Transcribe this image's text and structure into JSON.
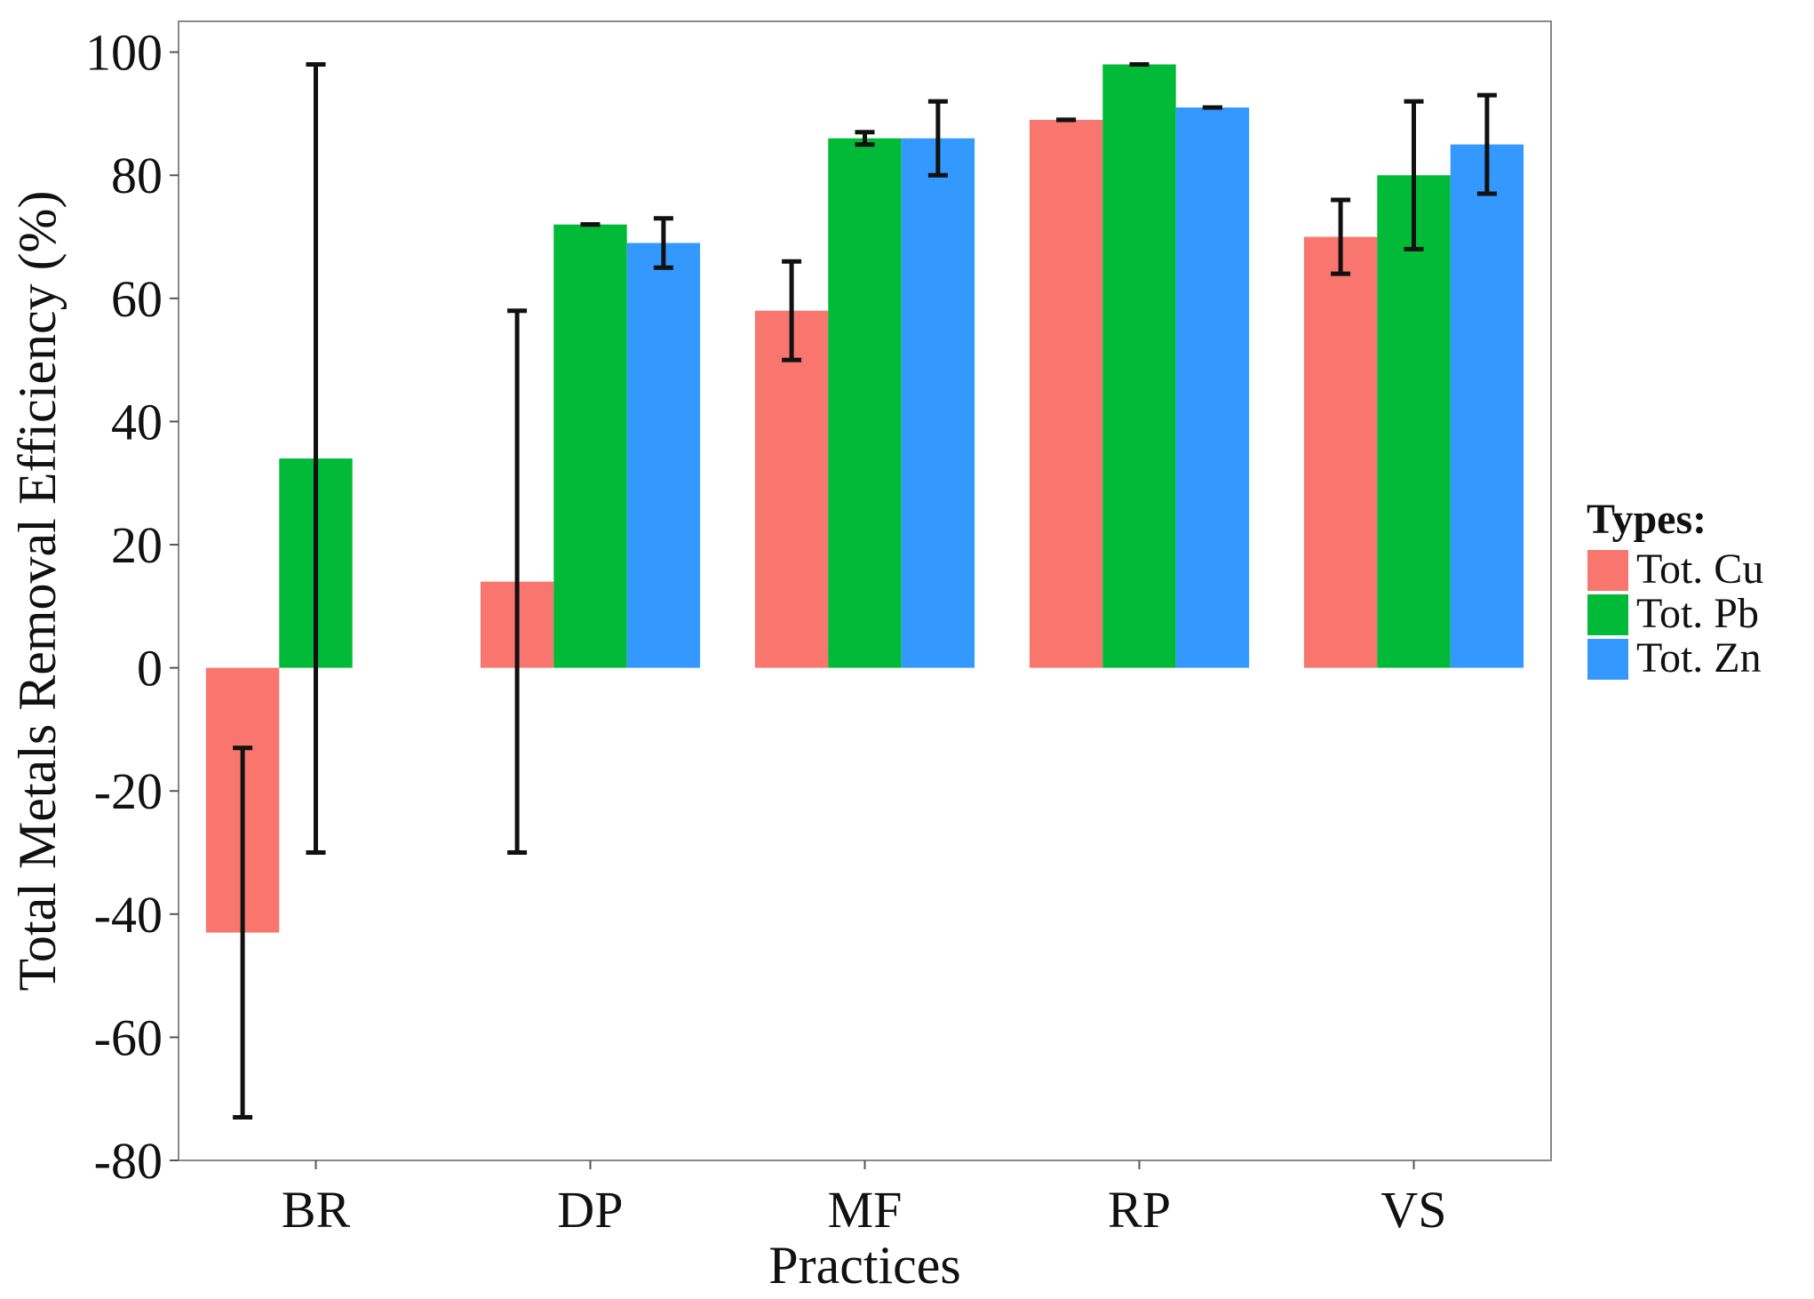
{
  "chart_data": {
    "type": "bar",
    "title": "",
    "xlabel": "Practices",
    "ylabel": "Total Metals Removal Efficiency (%)",
    "ylim": [
      -80,
      105
    ],
    "yticks": [
      -80,
      -60,
      -40,
      -20,
      0,
      20,
      40,
      60,
      80,
      100
    ],
    "grid": false,
    "categories": [
      "BR",
      "DP",
      "MF",
      "RP",
      "VS"
    ],
    "series": [
      {
        "name": "Tot. Cu",
        "color": "#F8766D",
        "values": [
          -43,
          14,
          58,
          89,
          70
        ],
        "error_low": [
          -73,
          -30,
          50,
          89,
          64
        ],
        "error_high": [
          -13,
          58,
          66,
          89,
          76
        ]
      },
      {
        "name": "Tot. Pb",
        "color": "#00BA38",
        "values": [
          34,
          72,
          86,
          98,
          80
        ],
        "error_low": [
          -30,
          72,
          85,
          98,
          68
        ],
        "error_high": [
          98,
          72,
          87,
          98,
          92
        ]
      },
      {
        "name": "Tot. Zn",
        "color": "#3399FF",
        "values": [
          null,
          69,
          86,
          91,
          85
        ],
        "error_low": [
          null,
          65,
          80,
          91,
          77
        ],
        "error_high": [
          null,
          73,
          92,
          91,
          93
        ]
      }
    ],
    "legend": {
      "title": "Types:",
      "position": "right"
    }
  }
}
